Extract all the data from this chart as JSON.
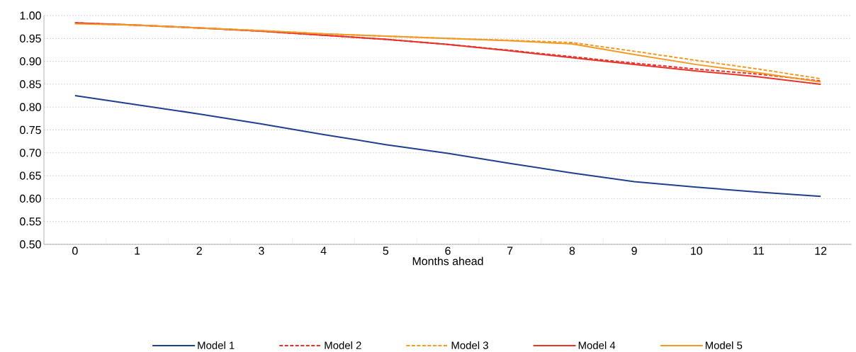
{
  "chart_data": {
    "type": "line",
    "xlabel": "Months ahead",
    "categories": [
      "0",
      "1",
      "2",
      "3",
      "4",
      "5",
      "6",
      "7",
      "8",
      "9",
      "10",
      "11",
      "12"
    ],
    "ylim": [
      0.5,
      1.0
    ],
    "yticks": [
      {
        "value": 0.5,
        "label": "0.50"
      },
      {
        "value": 0.55,
        "label": "0.55"
      },
      {
        "value": 0.6,
        "label": "0.60"
      },
      {
        "value": 0.65,
        "label": "0.65"
      },
      {
        "value": 0.7,
        "label": "0.70"
      },
      {
        "value": 0.75,
        "label": "0.75"
      },
      {
        "value": 0.8,
        "label": "0.80"
      },
      {
        "value": 0.85,
        "label": "0.85"
      },
      {
        "value": 0.9,
        "label": "0.90"
      },
      {
        "value": 0.95,
        "label": "0.95"
      },
      {
        "value": 1.0,
        "label": "1.00"
      }
    ],
    "grid": "y",
    "legend": "bottom",
    "series": [
      {
        "name": "Model 1",
        "color": "#1f3f8f",
        "line_style": "solid",
        "values": [
          0.825,
          0.805,
          0.785,
          0.763,
          0.74,
          0.718,
          0.699,
          0.677,
          0.656,
          0.637,
          0.625,
          0.614,
          0.605
        ]
      },
      {
        "name": "Model 2",
        "color": "#e8322a",
        "line_style": "dashed",
        "values": [
          0.984,
          0.979,
          0.973,
          0.966,
          0.957,
          0.948,
          0.937,
          0.924,
          0.91,
          0.896,
          0.883,
          0.872,
          0.857
        ]
      },
      {
        "name": "Model 3",
        "color": "#f39a25",
        "line_style": "dashed",
        "values": [
          0.983,
          0.979,
          0.973,
          0.967,
          0.96,
          0.955,
          0.95,
          0.946,
          0.941,
          0.922,
          0.902,
          0.883,
          0.862
        ]
      },
      {
        "name": "Model 4",
        "color": "#e8322a",
        "line_style": "solid",
        "values": [
          0.984,
          0.979,
          0.973,
          0.966,
          0.957,
          0.948,
          0.937,
          0.923,
          0.908,
          0.893,
          0.879,
          0.866,
          0.85
        ]
      },
      {
        "name": "Model 5",
        "color": "#f39a25",
        "line_style": "solid",
        "values": [
          0.982,
          0.979,
          0.973,
          0.967,
          0.96,
          0.955,
          0.95,
          0.945,
          0.938,
          0.915,
          0.893,
          0.875,
          0.855
        ]
      }
    ]
  }
}
